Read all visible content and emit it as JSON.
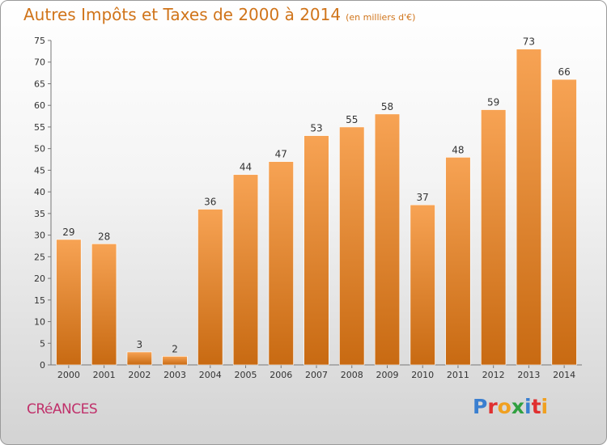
{
  "header": {
    "title": "Autres Impôts et Taxes de 2000 à 2014",
    "subtitle": "(en milliers d'€)"
  },
  "footer": {
    "town": "CRéANCES",
    "logo_letters": [
      "P",
      "r",
      "o",
      "x",
      "i",
      "t",
      "i"
    ],
    "logo_colors": [
      "#3a7fd0",
      "#e03030",
      "#f0a020",
      "#30a040",
      "#3a7fd0",
      "#e03030",
      "#f0a020"
    ]
  },
  "chart_data": {
    "type": "bar",
    "title": "Autres Impôts et Taxes de 2000 à 2014",
    "subtitle": "(en milliers d'€)",
    "categories": [
      "2000",
      "2001",
      "2002",
      "2003",
      "2004",
      "2005",
      "2006",
      "2007",
      "2008",
      "2009",
      "2010",
      "2011",
      "2012",
      "2013",
      "2014"
    ],
    "values": [
      29,
      28,
      3,
      2,
      36,
      44,
      47,
      53,
      55,
      58,
      37,
      48,
      59,
      73,
      66
    ],
    "ylim": [
      0,
      75
    ],
    "yticks": [
      0,
      5,
      10,
      15,
      20,
      25,
      30,
      35,
      40,
      45,
      50,
      55,
      60,
      65,
      70,
      75
    ],
    "grid": false,
    "bar_color_top": "#f7a354",
    "bar_color_bottom": "#c86a12"
  }
}
